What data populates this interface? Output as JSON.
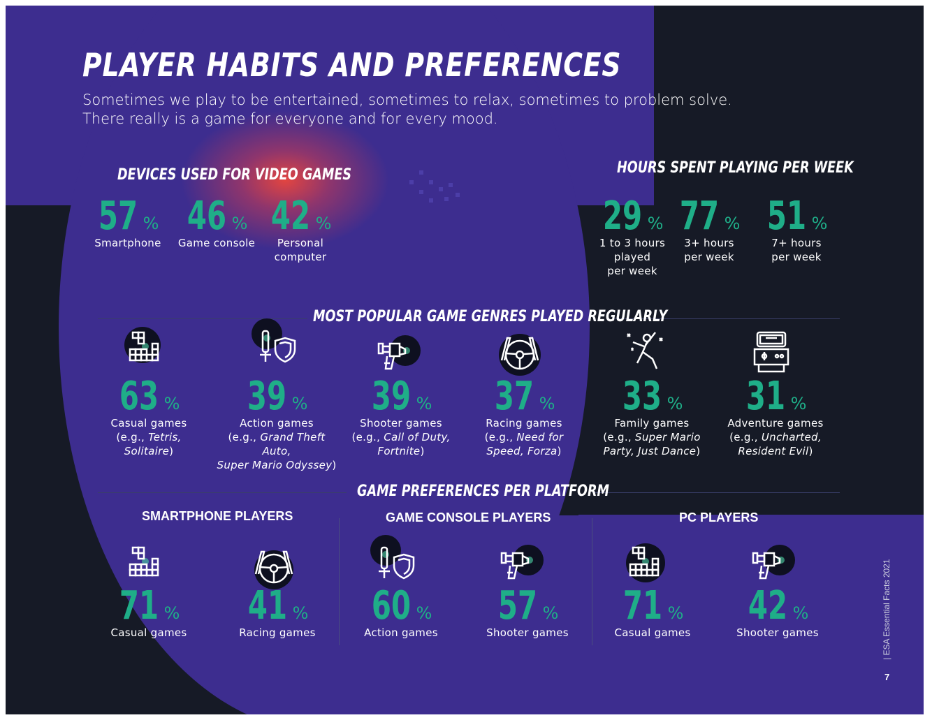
{
  "title": "PLAYER HABITS AND PREFERENCES",
  "subtitle": {
    "line1": "Sometimes we play to be entertained, sometimes to relax, sometimes to problem solve.",
    "line2": "There really is a game for everyone and for every mood."
  },
  "devices": {
    "heading": "DEVICES USED FOR VIDEO GAMES",
    "items": [
      {
        "value": "57",
        "unit": "%",
        "label": [
          "Smartphone"
        ]
      },
      {
        "value": "46",
        "unit": "%",
        "label": [
          "Game console"
        ]
      },
      {
        "value": "42",
        "unit": "%",
        "label": [
          "Personal",
          "computer"
        ]
      }
    ]
  },
  "hours": {
    "heading": "HOURS SPENT PLAYING PER WEEK",
    "items": [
      {
        "value": "29",
        "unit": "%",
        "label": [
          "1 to 3 hours",
          "played",
          "per week"
        ]
      },
      {
        "value": "77",
        "unit": "%",
        "label": [
          "3+ hours",
          "per week"
        ]
      },
      {
        "value": "51",
        "unit": "%",
        "label": [
          "7+ hours",
          "per week"
        ]
      }
    ]
  },
  "genres": {
    "heading": "MOST POPULAR GAME GENRES PLAYED REGULARLY",
    "items": [
      {
        "icon": "puzzle-blocks-icon",
        "value": "63",
        "unit": "%",
        "name": "Casual games",
        "ex_prefix": "(e.g., ",
        "ex1": "Tetris,",
        "ex2": "Solitaire",
        "ex_suffix": ")"
      },
      {
        "icon": "sword-shield-icon",
        "value": "39",
        "unit": "%",
        "name": "Action games",
        "ex_prefix": "(e.g., ",
        "ex1": "Grand Theft Auto,",
        "ex2": "Super Mario Odyssey",
        "ex_suffix": ")"
      },
      {
        "icon": "blaster-icon",
        "value": "39",
        "unit": "%",
        "name": "Shooter games",
        "ex_prefix": "(e.g., ",
        "ex1": "Call of Duty,",
        "ex2": "Fortnite",
        "ex_suffix": ")"
      },
      {
        "icon": "steering-wheel-icon",
        "value": "37",
        "unit": "%",
        "name": "Racing games",
        "ex_prefix": "(e.g., ",
        "ex1": "Need for",
        "ex2": "Speed, Forza",
        "ex_suffix": ")"
      },
      {
        "icon": "dancer-icon",
        "value": "33",
        "unit": "%",
        "name": "Family games",
        "ex_prefix": "(e.g., ",
        "ex1": "Super Mario",
        "ex2": "Party, Just Dance",
        "ex_suffix": ")"
      },
      {
        "icon": "arcade-machine-icon",
        "value": "31",
        "unit": "%",
        "name": "Adventure games",
        "ex_prefix": "(e.g., ",
        "ex1": "Uncharted,",
        "ex2": "Resident Evil",
        "ex_suffix": ")"
      }
    ]
  },
  "platforms": {
    "heading": "GAME PREFERENCES PER PLATFORM",
    "groups": [
      {
        "name": "SMARTPHONE PLAYERS",
        "items": [
          {
            "icon": "puzzle-blocks-icon",
            "value": "71",
            "unit": "%",
            "label": "Casual games"
          },
          {
            "icon": "steering-wheel-icon",
            "value": "41",
            "unit": "%",
            "label": "Racing games"
          }
        ]
      },
      {
        "name": "GAME CONSOLE PLAYERS",
        "items": [
          {
            "icon": "sword-shield-icon",
            "value": "60",
            "unit": "%",
            "label": "Action games"
          },
          {
            "icon": "blaster-icon",
            "value": "57",
            "unit": "%",
            "label": "Shooter games"
          }
        ]
      },
      {
        "name": "PC PLAYERS",
        "items": [
          {
            "icon": "puzzle-blocks-icon",
            "value": "71",
            "unit": "%",
            "label": "Casual games"
          },
          {
            "icon": "blaster-icon",
            "value": "42",
            "unit": "%",
            "label": "Shooter games"
          }
        ]
      }
    ]
  },
  "footer": {
    "side_label": "|  ESA Essential Facts 2021",
    "page_number": "7"
  },
  "colors": {
    "background": "#161a26",
    "purple": "#3d2d8f",
    "accent_green": "#1fae88",
    "glow": "#eb463c"
  }
}
